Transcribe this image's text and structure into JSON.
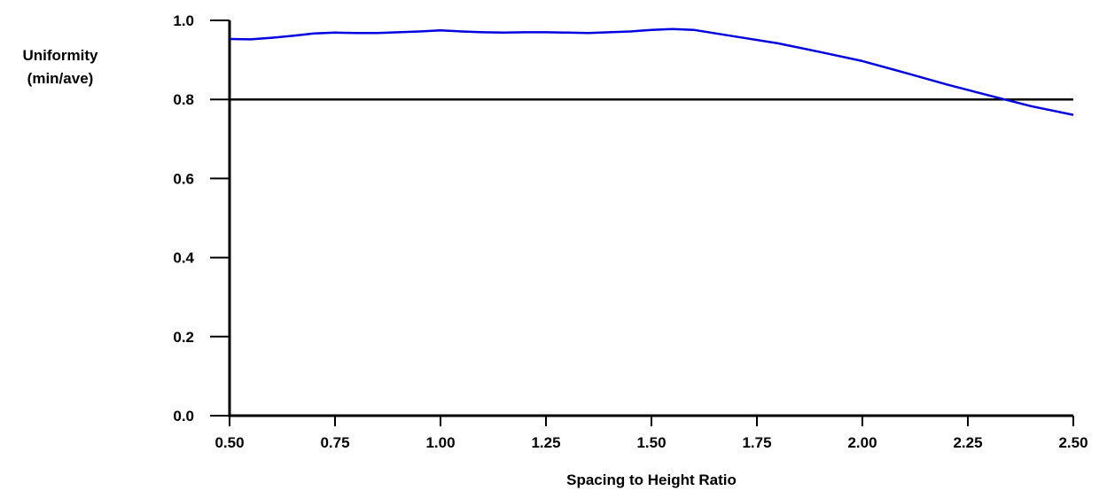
{
  "chart_data": {
    "type": "line",
    "title": "",
    "xlabel": "Spacing to Height Ratio",
    "ylabel_lines": [
      "Uniformity",
      "(min/ave)"
    ],
    "xlim": [
      0.5,
      2.5
    ],
    "ylim": [
      0.0,
      1.0
    ],
    "x_ticks": [
      "0.50",
      "0.75",
      "1.00",
      "1.25",
      "1.50",
      "1.75",
      "2.00",
      "2.25",
      "2.50"
    ],
    "y_ticks": [
      "1.0",
      "0.8",
      "0.6",
      "0.4",
      "0.2",
      "0.0"
    ],
    "grid": false,
    "legend": "none",
    "series": [
      {
        "color": "#0000e0",
        "x": [
          0.5,
          0.55,
          0.6,
          0.65,
          0.7,
          0.75,
          0.8,
          0.85,
          0.9,
          0.95,
          1.0,
          1.05,
          1.1,
          1.15,
          1.2,
          1.25,
          1.3,
          1.35,
          1.4,
          1.45,
          1.5,
          1.55,
          1.6,
          1.7,
          1.8,
          1.9,
          2.0,
          2.1,
          2.2,
          2.3,
          2.4,
          2.5
        ],
        "y": [
          0.953,
          0.952,
          0.956,
          0.961,
          0.967,
          0.969,
          0.968,
          0.968,
          0.97,
          0.972,
          0.975,
          0.972,
          0.97,
          0.969,
          0.97,
          0.97,
          0.969,
          0.968,
          0.97,
          0.972,
          0.976,
          0.978,
          0.976,
          0.959,
          0.942,
          0.92,
          0.897,
          0.868,
          0.838,
          0.81,
          0.783,
          0.761
        ]
      }
    ],
    "reference_line": {
      "y": 0.8,
      "color": "#000000"
    }
  }
}
